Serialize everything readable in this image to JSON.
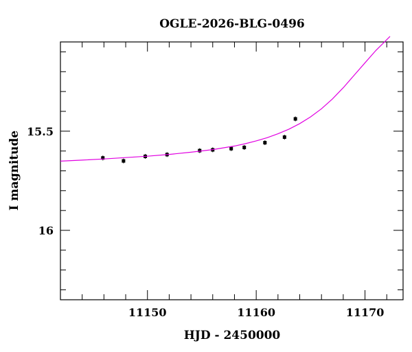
{
  "chart_data": {
    "type": "scatter",
    "title": "OGLE-2026-BLG-0496",
    "xlabel": "HJD - 2450000",
    "ylabel": "I magnitude",
    "xlim": [
      11142.0,
      11173.5
    ],
    "ylim": [
      16.35,
      15.05
    ],
    "y_inverted": true,
    "x_ticks": [
      11150,
      11160,
      11170
    ],
    "x_tick_labels": [
      "11150",
      "11160",
      "11170"
    ],
    "y_ticks": [
      15.5,
      16
    ],
    "y_tick_labels": [
      "15.5",
      "16"
    ],
    "grid": false,
    "legend": "none",
    "series": [
      {
        "kind": "points",
        "color": "#000000",
        "x": [
          11145.9,
          11147.8,
          11149.8,
          11151.8,
          11154.8,
          11156.0,
          11157.7,
          11158.9,
          11160.8,
          11162.6,
          11163.6
        ],
        "y": [
          15.635,
          15.65,
          15.627,
          15.618,
          15.598,
          15.594,
          15.588,
          15.582,
          15.558,
          15.53,
          15.438
        ]
      },
      {
        "kind": "model",
        "color": "#e100e1",
        "x": [
          11142.0,
          11144.0,
          11146.0,
          11148.0,
          11150.0,
          11152.0,
          11154.0,
          11156.0,
          11158.0,
          11159.0,
          11160.0,
          11161.0,
          11162.0,
          11163.0,
          11164.0,
          11165.0,
          11166.0,
          11167.0,
          11168.0,
          11169.0,
          11170.0,
          11171.0,
          11171.7,
          11172.3
        ],
        "y": [
          15.651,
          15.646,
          15.64,
          15.633,
          15.626,
          15.617,
          15.606,
          15.593,
          15.575,
          15.563,
          15.549,
          15.533,
          15.513,
          15.49,
          15.462,
          15.428,
          15.387,
          15.338,
          15.281,
          15.218,
          15.155,
          15.093,
          15.055,
          15.022
        ]
      }
    ]
  }
}
